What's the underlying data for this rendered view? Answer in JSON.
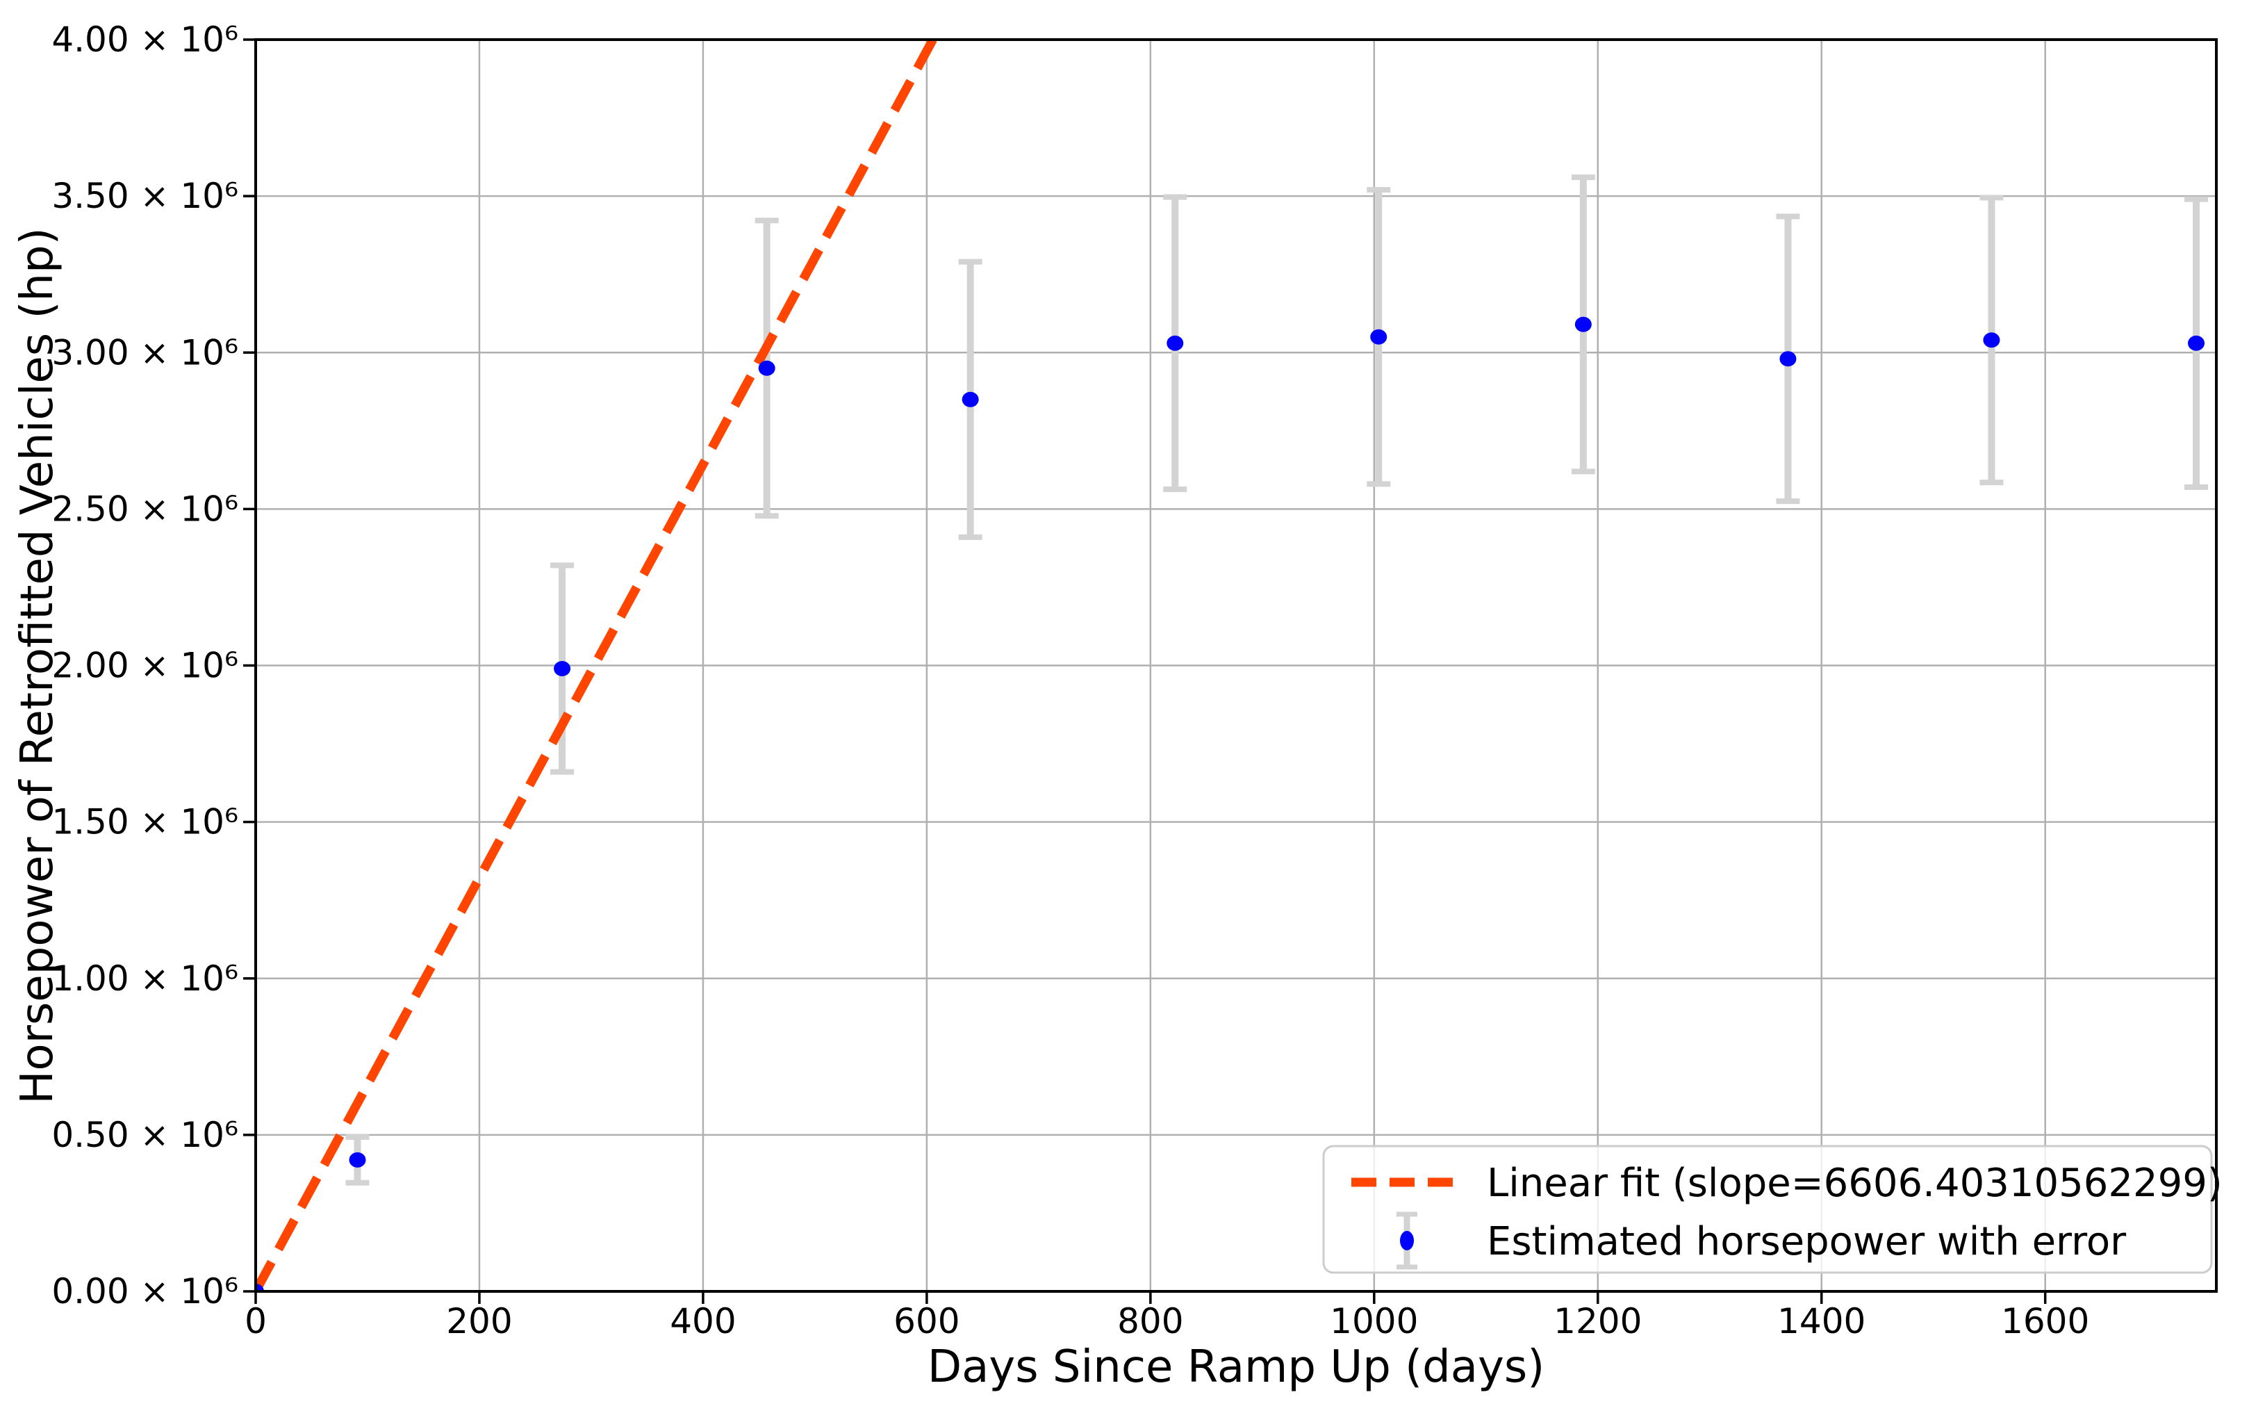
{
  "figure": {
    "background": "#FFFFFF"
  },
  "chart_data": {
    "type": "scatter",
    "title": "",
    "xlabel": "Days Since Ramp Up (days)",
    "ylabel": "Horsepower of Retrofitted Vehicles (hp)",
    "xlim": [
      0,
      1753
    ],
    "ylim": [
      0,
      4000000
    ],
    "grid": true,
    "grid_color": "#B0B0B0",
    "spine_color": "#000000",
    "legend_position": "lower right",
    "x_ticks": [
      0,
      200,
      400,
      600,
      800,
      1000,
      1200,
      1400,
      1600
    ],
    "x_tick_labels": [
      "0",
      "200",
      "400",
      "600",
      "800",
      "1000",
      "1200",
      "1400",
      "1600"
    ],
    "y_ticks": [
      0,
      500000,
      1000000,
      1500000,
      2000000,
      2500000,
      3000000,
      3500000,
      4000000
    ],
    "y_tick_labels": [
      "0.00 × 10⁶",
      "0.50 × 10⁶",
      "1.00 × 10⁶",
      "1.50 × 10⁶",
      "2.00 × 10⁶",
      "2.50 × 10⁶",
      "3.00 × 10⁶",
      "3.50 × 10⁶",
      "4.00 × 10⁶"
    ],
    "series": [
      {
        "name": "Linear fit (slope=6606.40310562299)",
        "type": "line",
        "style": "dashed",
        "color": "#FF4500",
        "slope": 6606.40310562299,
        "intercept": 0,
        "x_start": 0,
        "x_end": 605.5
      },
      {
        "name": "Estimated horsepower with error",
        "type": "scatter_errorbar",
        "marker_color": "#0000FF",
        "error_color": "#D3D3D3",
        "x": [
          0,
          91,
          274,
          457,
          639,
          822,
          1004,
          1187,
          1370,
          1552,
          1735
        ],
        "y": [
          0,
          420000,
          1990000,
          2950000,
          2850000,
          3030000,
          3050000,
          3090000,
          2980000,
          3040000,
          3030000
        ],
        "yerr": [
          0,
          73000,
          330000,
          472000,
          440000,
          467000,
          470000,
          470000,
          455000,
          455000,
          460000
        ]
      }
    ]
  }
}
